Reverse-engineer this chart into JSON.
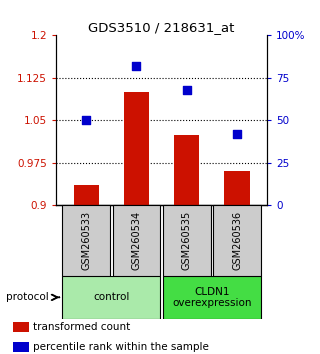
{
  "title": "GDS3510 / 218631_at",
  "samples": [
    "GSM260533",
    "GSM260534",
    "GSM260535",
    "GSM260536"
  ],
  "transformed_count": [
    0.935,
    1.1,
    1.025,
    0.96
  ],
  "percentile_rank": [
    50,
    82,
    68,
    42
  ],
  "ylim_left": [
    0.9,
    1.2
  ],
  "ylim_right": [
    0,
    100
  ],
  "yticks_left": [
    0.9,
    0.975,
    1.05,
    1.125,
    1.2
  ],
  "yticks_right": [
    0,
    25,
    50,
    75,
    100
  ],
  "ytick_labels_left": [
    "0.9",
    "0.975",
    "1.05",
    "1.125",
    "1.2"
  ],
  "ytick_labels_right": [
    "0",
    "25",
    "50",
    "75",
    "100%"
  ],
  "bar_color": "#cc1100",
  "dot_color": "#0000cc",
  "groups": [
    {
      "label": "control",
      "color": "#aaeaaa"
    },
    {
      "label": "CLDN1\noverexpression",
      "color": "#44dd44"
    }
  ],
  "protocol_label": "protocol",
  "legend_items": [
    {
      "color": "#cc1100",
      "label": "transformed count"
    },
    {
      "color": "#0000cc",
      "label": "percentile rank within the sample"
    }
  ],
  "background_color": "#ffffff",
  "bar_bottom": 0.9,
  "sample_box_color": "#cccccc",
  "dotted_lines": [
    0.975,
    1.05,
    1.125
  ]
}
